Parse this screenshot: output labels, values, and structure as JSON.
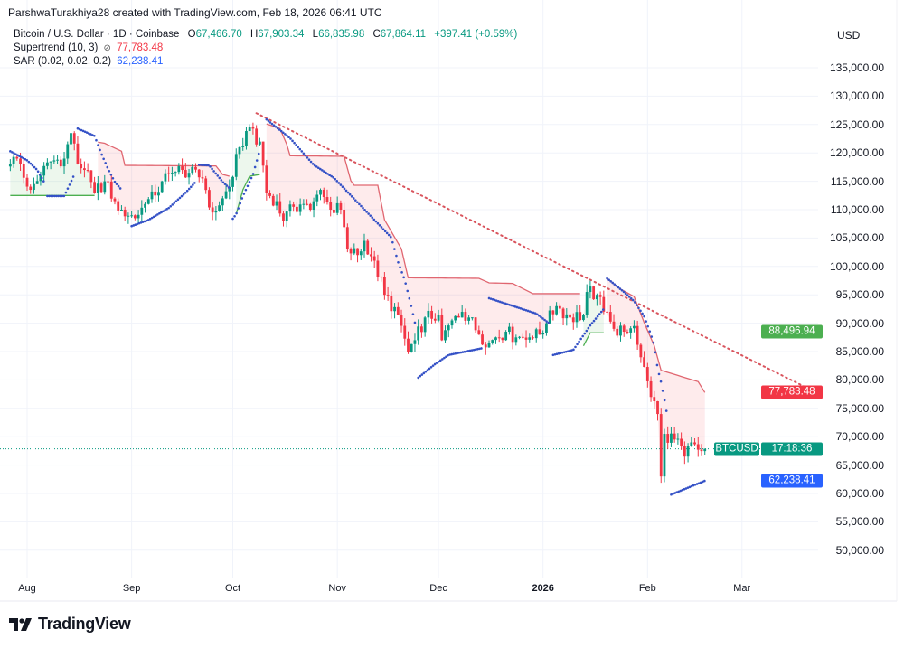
{
  "header": {
    "author_line": "ParshwaTurakhiya28 created with TradingView.com, Feb 18, 2026 06:41 UTC",
    "symbol": "Bitcoin / U.S. Dollar · 1D · Coinbase",
    "ohlc": {
      "o_label": "O",
      "o": "67,466.70",
      "h_label": "H",
      "h": "67,903.34",
      "l_label": "L",
      "l": "66,835.98",
      "c_label": "C",
      "c": "67,864.11",
      "change": "+397.41 (+0.59%)"
    },
    "supertrend_label": "Supertrend (10, 3)",
    "supertrend_icon": "hidden-eye-icon",
    "supertrend_value": "77,783.48",
    "sar_label": "SAR (0.02, 0.02, 0.2)",
    "sar_value": "62,238.41",
    "currency": "USD"
  },
  "price_tags": {
    "green": {
      "text": "88,496.94",
      "value": 88496.94,
      "color": "#4caf50"
    },
    "supertrend": {
      "text": "77,783.48",
      "value": 77783.48,
      "color": "#f23645"
    },
    "last": {
      "symbol": "BTCUSD",
      "countdown": "17:18:36",
      "value": 67864.11,
      "color": "#089981"
    },
    "sar": {
      "text": "62,238.41",
      "value": 62238.41,
      "color": "#2962ff"
    }
  },
  "branding": {
    "logo_text": "TradingView"
  },
  "colors": {
    "up": "#089981",
    "down": "#f23645",
    "supertrend_up": "#4caf50",
    "supertrend_down": "#e06670",
    "sar": "#3451c6",
    "trendline": "#d9545d",
    "grid": "#f0f3fa"
  },
  "chart_data": {
    "type": "candlestick",
    "title": "Bitcoin / U.S. Dollar · 1D · Coinbase",
    "ylim": [
      47000,
      140000
    ],
    "y_ticks": [
      "135,000.00",
      "130,000.00",
      "125,000.00",
      "120,000.00",
      "115,000.00",
      "110,000.00",
      "105,000.00",
      "100,000.00",
      "95,000.00",
      "90,000.00",
      "85,000.00",
      "80,000.00",
      "75,000.00",
      "70,000.00",
      "65,000.00",
      "60,000.00",
      "55,000.00",
      "50,000.00"
    ],
    "x_ticks": [
      {
        "label": "Aug",
        "date": "2025-08-01"
      },
      {
        "label": "Sep",
        "date": "2025-09-01"
      },
      {
        "label": "Oct",
        "date": "2025-10-01"
      },
      {
        "label": "Nov",
        "date": "2025-11-01"
      },
      {
        "label": "Dec",
        "date": "2025-12-01"
      },
      {
        "label": "2026",
        "date": "2026-01-01",
        "bold": true
      },
      {
        "label": "Feb",
        "date": "2026-02-01"
      },
      {
        "label": "Mar",
        "date": "2026-03-01"
      }
    ],
    "grid": true,
    "close_approx": [
      [
        "2025-07-27",
        118000
      ],
      [
        "2025-07-29",
        119000
      ],
      [
        "2025-08-02",
        113500
      ],
      [
        "2025-08-05",
        116000
      ],
      [
        "2025-08-08",
        118500
      ],
      [
        "2025-08-12",
        119000
      ],
      [
        "2025-08-14",
        123500
      ],
      [
        "2025-08-16",
        118000
      ],
      [
        "2025-08-18",
        117000
      ],
      [
        "2025-08-21",
        113000
      ],
      [
        "2025-08-24",
        115000
      ],
      [
        "2025-08-27",
        111500
      ],
      [
        "2025-08-29",
        110000
      ],
      [
        "2025-09-01",
        109000
      ],
      [
        "2025-09-02",
        108500
      ],
      [
        "2025-09-05",
        111000
      ],
      [
        "2025-09-08",
        112500
      ],
      [
        "2025-09-10",
        115000
      ],
      [
        "2025-09-13",
        116500
      ],
      [
        "2025-09-16",
        117000
      ],
      [
        "2025-09-18",
        116500
      ],
      [
        "2025-09-22",
        115500
      ],
      [
        "2025-09-25",
        109500
      ],
      [
        "2025-09-28",
        112000
      ],
      [
        "2025-09-30",
        114000
      ],
      [
        "2025-10-03",
        121000
      ],
      [
        "2025-10-06",
        124500
      ],
      [
        "2025-10-08",
        121500
      ],
      [
        "2025-10-09",
        122000
      ],
      [
        "2025-10-11",
        113000
      ],
      [
        "2025-10-14",
        111500
      ],
      [
        "2025-10-16",
        108000
      ],
      [
        "2025-10-19",
        110500
      ],
      [
        "2025-10-22",
        111000
      ],
      [
        "2025-10-24",
        110000
      ],
      [
        "2025-10-27",
        113500
      ],
      [
        "2025-10-30",
        110000
      ],
      [
        "2025-11-02",
        110000
      ],
      [
        "2025-11-04",
        103000
      ],
      [
        "2025-11-07",
        102000
      ],
      [
        "2025-11-09",
        104500
      ],
      [
        "2025-11-12",
        101000
      ],
      [
        "2025-11-15",
        95000
      ],
      [
        "2025-11-19",
        91500
      ],
      [
        "2025-11-22",
        85000
      ],
      [
        "2025-11-24",
        87000
      ],
      [
        "2025-11-27",
        91000
      ],
      [
        "2025-12-01",
        91500
      ],
      [
        "2025-12-02",
        87000
      ],
      [
        "2025-12-05",
        90500
      ],
      [
        "2025-12-08",
        92000
      ],
      [
        "2025-12-10",
        91000
      ],
      [
        "2025-12-13",
        88000
      ],
      [
        "2025-12-16",
        86500
      ],
      [
        "2025-12-18",
        87500
      ],
      [
        "2025-12-21",
        88500
      ],
      [
        "2025-12-24",
        87500
      ],
      [
        "2025-12-28",
        87500
      ],
      [
        "2025-12-31",
        88000
      ],
      [
        "2026-01-02",
        90000
      ],
      [
        "2026-01-05",
        93000
      ],
      [
        "2026-01-09",
        91000
      ],
      [
        "2026-01-13",
        91500
      ],
      [
        "2026-01-14",
        95500
      ],
      [
        "2026-01-17",
        95000
      ],
      [
        "2026-01-20",
        92000
      ],
      [
        "2026-01-22",
        89000
      ],
      [
        "2026-01-25",
        88500
      ],
      [
        "2026-01-28",
        89500
      ],
      [
        "2026-01-30",
        84000
      ],
      [
        "2026-02-02",
        77000
      ],
      [
        "2026-02-04",
        74000
      ],
      [
        "2026-02-05",
        63000
      ],
      [
        "2026-02-06",
        70500
      ],
      [
        "2026-02-09",
        69500
      ],
      [
        "2026-02-12",
        66500
      ],
      [
        "2026-02-14",
        69000
      ],
      [
        "2026-02-17",
        67466.7
      ],
      [
        "2026-02-18",
        67864.11
      ]
    ],
    "last": {
      "open": 67466.7,
      "high": 67903.34,
      "low": 66835.98,
      "close": 67864.11
    },
    "supertrend": [
      {
        "trend": "up",
        "points": [
          [
            "2025-07-27",
            112500
          ],
          [
            "2025-08-21",
            112500
          ]
        ]
      },
      {
        "trend": "down",
        "points": [
          [
            "2025-08-22",
            121900
          ],
          [
            "2025-08-24",
            121700
          ],
          [
            "2025-08-29",
            120300
          ],
          [
            "2025-08-30",
            117800
          ],
          [
            "2025-09-26",
            117700
          ],
          [
            "2025-09-28",
            116200
          ],
          [
            "2025-09-30",
            115900
          ]
        ]
      },
      {
        "trend": "up",
        "points": [
          [
            "2025-10-02",
            109200
          ],
          [
            "2025-10-04",
            113500
          ],
          [
            "2025-10-06",
            115900
          ],
          [
            "2025-10-09",
            116200
          ]
        ]
      },
      {
        "trend": "down",
        "points": [
          [
            "2025-10-11",
            125100
          ],
          [
            "2025-10-15",
            124300
          ],
          [
            "2025-10-17",
            121500
          ],
          [
            "2025-10-18",
            119500
          ],
          [
            "2025-11-03",
            119400
          ],
          [
            "2025-11-05",
            115100
          ],
          [
            "2025-11-06",
            114300
          ],
          [
            "2025-11-13",
            114300
          ],
          [
            "2025-11-15",
            108200
          ],
          [
            "2025-11-20",
            103100
          ],
          [
            "2025-11-22",
            98000
          ],
          [
            "2025-12-13",
            97900
          ],
          [
            "2025-12-16",
            97100
          ],
          [
            "2025-12-23",
            97000
          ],
          [
            "2025-12-29",
            95200
          ],
          [
            "2026-01-12",
            95200
          ]
        ]
      },
      {
        "trend": "up",
        "points": [
          [
            "2026-01-13",
            86000
          ],
          [
            "2026-01-15",
            88300
          ],
          [
            "2026-01-19",
            88300
          ]
        ]
      },
      {
        "trend": "down",
        "points": [
          [
            "2026-01-20",
            97900
          ],
          [
            "2026-01-24",
            96000
          ],
          [
            "2026-01-28",
            94700
          ],
          [
            "2026-01-31",
            90100
          ],
          [
            "2026-02-03",
            86000
          ],
          [
            "2026-02-05",
            81700
          ],
          [
            "2026-02-16",
            79700
          ],
          [
            "2026-02-18",
            77783.48
          ]
        ]
      }
    ],
    "sar": [
      {
        "side": "above",
        "points": [
          [
            "2025-07-27",
            120300
          ],
          [
            "2025-08-01",
            118700
          ],
          [
            "2025-08-04",
            117000
          ],
          [
            "2025-08-06",
            114900
          ]
        ]
      },
      {
        "side": "below",
        "points": [
          [
            "2025-08-07",
            112400
          ],
          [
            "2025-08-12",
            112400
          ],
          [
            "2025-08-14",
            114900
          ],
          [
            "2025-08-15",
            116200
          ]
        ]
      },
      {
        "side": "above",
        "points": [
          [
            "2025-08-16",
            124300
          ],
          [
            "2025-08-21",
            123000
          ],
          [
            "2025-08-23",
            119900
          ],
          [
            "2025-08-25",
            117200
          ],
          [
            "2025-08-27",
            114900
          ],
          [
            "2025-08-29",
            113500
          ]
        ]
      },
      {
        "side": "below",
        "points": [
          [
            "2025-09-01",
            107100
          ],
          [
            "2025-09-06",
            108200
          ],
          [
            "2025-09-12",
            110300
          ],
          [
            "2025-09-17",
            113000
          ],
          [
            "2025-09-20",
            114900
          ]
        ]
      },
      {
        "side": "above",
        "points": [
          [
            "2025-09-21",
            117900
          ],
          [
            "2025-09-24",
            117800
          ],
          [
            "2025-09-28",
            114900
          ],
          [
            "2025-09-30",
            113800
          ]
        ]
      },
      {
        "side": "below",
        "points": [
          [
            "2025-10-01",
            108400
          ],
          [
            "2025-10-02",
            109200
          ],
          [
            "2025-10-04",
            112400
          ],
          [
            "2025-10-07",
            116200
          ],
          [
            "2025-10-09",
            120500
          ]
        ]
      },
      {
        "side": "above",
        "points": [
          [
            "2025-10-11",
            125900
          ],
          [
            "2025-10-18",
            122600
          ],
          [
            "2025-10-25",
            117900
          ],
          [
            "2025-10-31",
            115600
          ],
          [
            "2025-11-06",
            111900
          ],
          [
            "2025-11-12",
            108200
          ],
          [
            "2025-11-17",
            105100
          ],
          [
            "2025-11-19",
            100800
          ],
          [
            "2025-11-21",
            97600
          ],
          [
            "2025-11-23",
            92800
          ],
          [
            "2025-11-24",
            90100
          ]
        ]
      },
      {
        "side": "below",
        "points": [
          [
            "2025-11-25",
            80400
          ],
          [
            "2025-11-30",
            82800
          ],
          [
            "2025-12-04",
            84400
          ],
          [
            "2025-12-14",
            85600
          ]
        ]
      },
      {
        "side": "above",
        "points": [
          [
            "2025-12-16",
            94400
          ],
          [
            "2025-12-30",
            91700
          ],
          [
            "2026-01-03",
            89900
          ]
        ]
      },
      {
        "side": "below",
        "points": [
          [
            "2026-01-04",
            84400
          ],
          [
            "2026-01-10",
            85300
          ],
          [
            "2026-01-15",
            89600
          ],
          [
            "2026-01-19",
            92500
          ]
        ]
      },
      {
        "side": "above",
        "points": [
          [
            "2026-01-20",
            97900
          ],
          [
            "2026-01-25",
            95500
          ],
          [
            "2026-01-28",
            93900
          ],
          [
            "2026-01-31",
            91200
          ],
          [
            "2026-02-02",
            88000
          ],
          [
            "2026-02-03",
            86100
          ],
          [
            "2026-02-04",
            82000
          ],
          [
            "2026-02-05",
            79600
          ],
          [
            "2026-02-06",
            76600
          ],
          [
            "2026-02-07",
            73200
          ]
        ]
      },
      {
        "side": "below",
        "points": [
          [
            "2026-02-08",
            59800
          ],
          [
            "2026-02-18",
            62238.41
          ]
        ]
      }
    ],
    "trendline": {
      "start": [
        "2025-10-08",
        127000
      ],
      "end": [
        "2026-03-24",
        77500
      ]
    }
  }
}
